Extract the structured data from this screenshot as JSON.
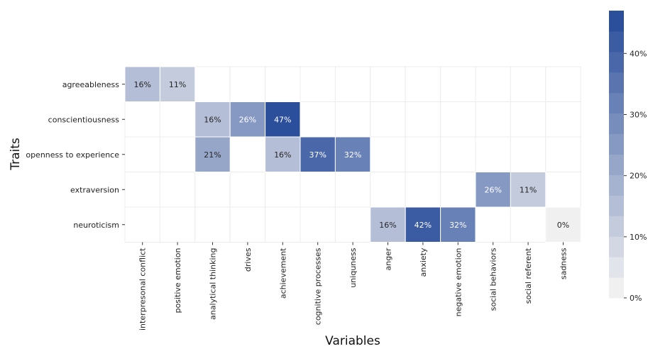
{
  "chart_data": {
    "type": "heatmap",
    "title": "",
    "xlabel": "Variables",
    "ylabel": "Traits",
    "rows": [
      "agreeableness",
      "conscientiousness",
      "openness to experience",
      "extraversion",
      "neuroticism"
    ],
    "columns": [
      "interpresonal conflict",
      "positive emotion",
      "analytical thinking",
      "drives",
      "achievement",
      "cognitive processes",
      "uniquness",
      "anger",
      "anxiety",
      "negative emotion",
      "social behaviors",
      "social referent",
      "sadness"
    ],
    "cells": [
      {
        "row": 0,
        "col": 0,
        "value": 16,
        "label": "16%"
      },
      {
        "row": 0,
        "col": 1,
        "value": 11,
        "label": "11%"
      },
      {
        "row": 1,
        "col": 2,
        "value": 16,
        "label": "16%"
      },
      {
        "row": 1,
        "col": 3,
        "value": 26,
        "label": "26%"
      },
      {
        "row": 1,
        "col": 4,
        "value": 47,
        "label": "47%"
      },
      {
        "row": 2,
        "col": 2,
        "value": 21,
        "label": "21%"
      },
      {
        "row": 2,
        "col": 4,
        "value": 16,
        "label": "16%"
      },
      {
        "row": 2,
        "col": 5,
        "value": 37,
        "label": "37%"
      },
      {
        "row": 2,
        "col": 6,
        "value": 32,
        "label": "32%"
      },
      {
        "row": 3,
        "col": 10,
        "value": 26,
        "label": "26%"
      },
      {
        "row": 3,
        "col": 11,
        "value": 11,
        "label": "11%"
      },
      {
        "row": 4,
        "col": 7,
        "value": 16,
        "label": "16%"
      },
      {
        "row": 4,
        "col": 8,
        "value": 42,
        "label": "42%"
      },
      {
        "row": 4,
        "col": 9,
        "value": 32,
        "label": "32%"
      },
      {
        "row": 4,
        "col": 12,
        "value": 0,
        "label": "0%"
      }
    ],
    "colorbar": {
      "vmin": 0,
      "vmax": 47,
      "steps": 14,
      "ticks": [
        0,
        10,
        20,
        30,
        40
      ],
      "tick_labels": [
        "0%",
        "10%",
        "20%",
        "30%",
        "40%"
      ],
      "color_low": "#f0f0f0",
      "color_high": "#2c4f9c"
    },
    "grid": true,
    "empty_cell_color": "#ffffff"
  }
}
